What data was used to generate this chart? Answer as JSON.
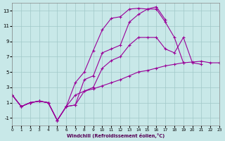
{
  "xlabel": "Windchill (Refroidissement éolien,°C)",
  "background_color": "#c8e8e8",
  "grid_color": "#a0c8c8",
  "line_color": "#990099",
  "xlim_min": 0,
  "xlim_max": 23,
  "ylim_min": -2,
  "ylim_max": 14,
  "xticks": [
    0,
    1,
    2,
    3,
    4,
    5,
    6,
    7,
    8,
    9,
    10,
    11,
    12,
    13,
    14,
    15,
    16,
    17,
    18,
    19,
    20,
    21,
    22,
    23
  ],
  "yticks": [
    -1,
    1,
    3,
    5,
    7,
    9,
    11,
    13
  ],
  "series": [
    [
      2.0,
      0.5,
      1.0,
      1.2,
      1.0,
      -1.3,
      0.5,
      3.6,
      5.0,
      7.8,
      10.5,
      12.0,
      12.2,
      13.2,
      13.3,
      13.2,
      13.5,
      11.8,
      null,
      null,
      null,
      null,
      null,
      null
    ],
    [
      2.0,
      0.5,
      1.0,
      1.2,
      1.0,
      -1.3,
      0.5,
      0.7,
      4.0,
      4.5,
      7.5,
      8.0,
      8.5,
      11.5,
      12.5,
      13.2,
      13.2,
      11.5,
      9.5,
      6.2,
      null,
      null,
      null,
      null
    ],
    [
      2.0,
      0.5,
      1.0,
      1.2,
      1.0,
      -1.3,
      0.5,
      0.7,
      2.5,
      3.0,
      5.5,
      6.5,
      7.0,
      8.5,
      9.5,
      9.5,
      9.5,
      8.0,
      7.5,
      9.5,
      6.2,
      6.0,
      null,
      null
    ],
    [
      2.0,
      0.5,
      1.0,
      1.2,
      1.0,
      -1.3,
      0.5,
      2.0,
      2.5,
      2.8,
      3.2,
      3.6,
      4.0,
      4.5,
      5.0,
      5.2,
      5.5,
      5.8,
      6.0,
      6.2,
      6.3,
      6.4,
      6.2,
      6.2
    ]
  ]
}
